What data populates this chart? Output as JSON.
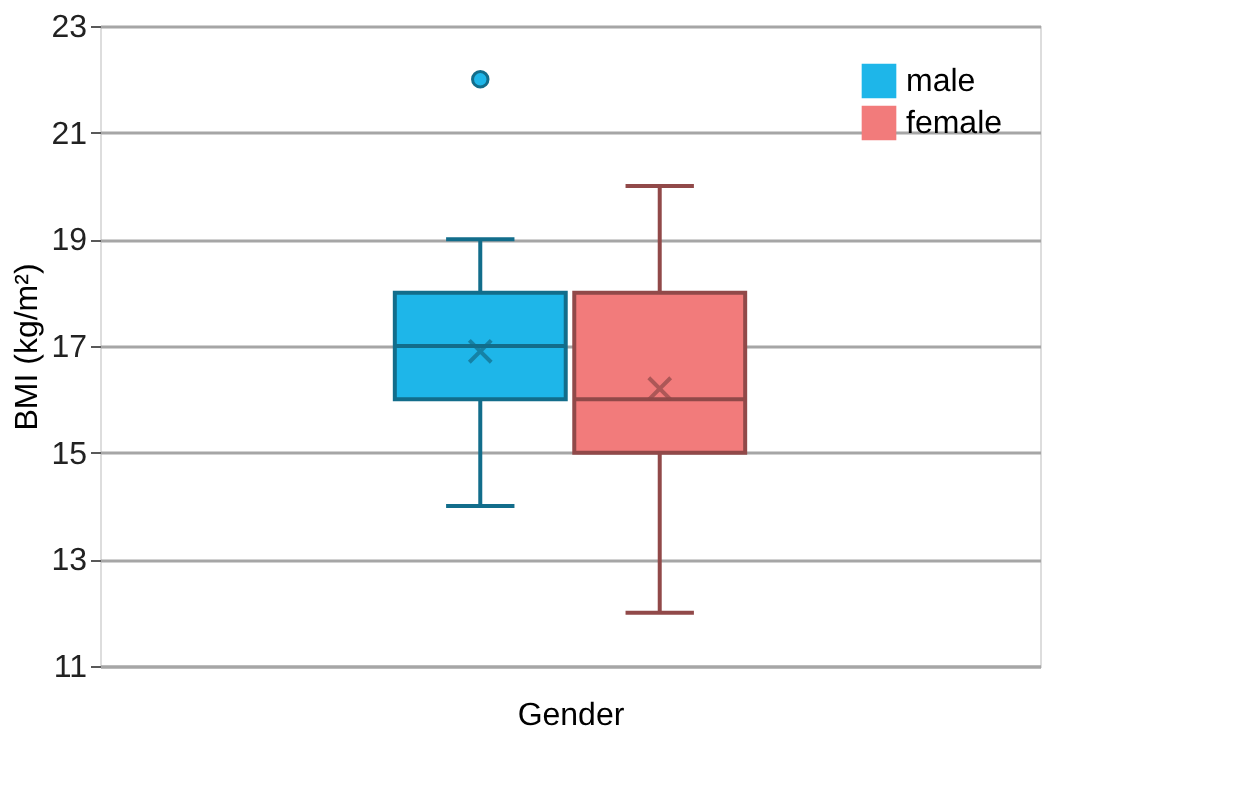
{
  "chart_data": {
    "type": "box",
    "xlabel": "Gender",
    "ylabel": "BMI (kg/m²)",
    "categories": [
      null
    ],
    "ylim": [
      11,
      23
    ],
    "yticks": [
      11,
      13,
      15,
      17,
      19,
      21,
      23
    ],
    "grid": "y",
    "legend": "top right",
    "series": [
      {
        "name": "male",
        "color": "#1eb6e9",
        "boxes": [
          {
            "low": 14,
            "q1": 16,
            "median": 17,
            "q3": 18,
            "high": 19,
            "mean": 16.9,
            "outliers": [
              22
            ]
          }
        ]
      },
      {
        "name": "female",
        "color": "#f27b7b",
        "boxes": [
          {
            "low": 12,
            "q1": 15,
            "median": 16,
            "q3": 18,
            "high": 20,
            "mean": 16.2
          }
        ]
      }
    ]
  }
}
